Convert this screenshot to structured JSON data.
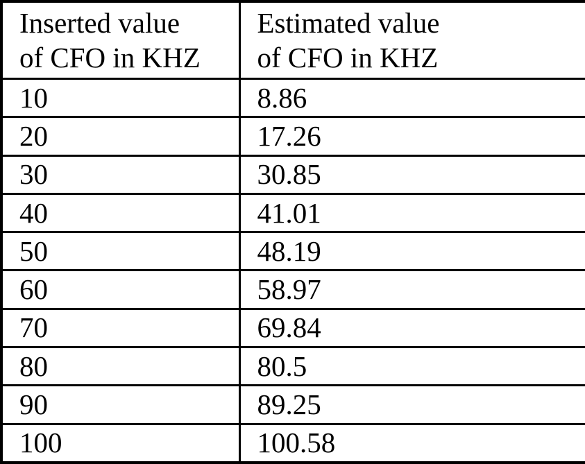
{
  "chart_data": {
    "type": "table",
    "title": "",
    "columns": [
      "Inserted value of CFO in KHZ",
      "Estimated value of CFO in KHZ"
    ],
    "rows": [
      [
        10,
        8.86
      ],
      [
        20,
        17.26
      ],
      [
        30,
        30.85
      ],
      [
        40,
        41.01
      ],
      [
        50,
        48.19
      ],
      [
        60,
        58.97
      ],
      [
        70,
        69.84
      ],
      [
        80,
        80.5
      ],
      [
        90,
        89.25
      ],
      [
        100,
        100.58
      ]
    ],
    "layout_hints": {
      "grid": "full-borders",
      "header_lines_per_column": 2,
      "border_color": "#000000",
      "background_color": "#ffffff",
      "text_color": "#000000"
    }
  },
  "table": {
    "header": {
      "col1_line1": "Inserted value",
      "col1_line2": "of CFO in KHZ",
      "col2_line1": "Estimated value",
      "col2_line2": "of CFO in KHZ"
    },
    "rows": [
      {
        "inserted": "10",
        "estimated": "8.86"
      },
      {
        "inserted": "20",
        "estimated": "17.26"
      },
      {
        "inserted": "30",
        "estimated": "30.85"
      },
      {
        "inserted": "40",
        "estimated": "41.01"
      },
      {
        "inserted": "50",
        "estimated": "48.19"
      },
      {
        "inserted": "60",
        "estimated": "58.97"
      },
      {
        "inserted": "70",
        "estimated": "69.84"
      },
      {
        "inserted": "80",
        "estimated": "80.5"
      },
      {
        "inserted": "90",
        "estimated": "89.25"
      },
      {
        "inserted": "100",
        "estimated": "100.58"
      }
    ]
  }
}
